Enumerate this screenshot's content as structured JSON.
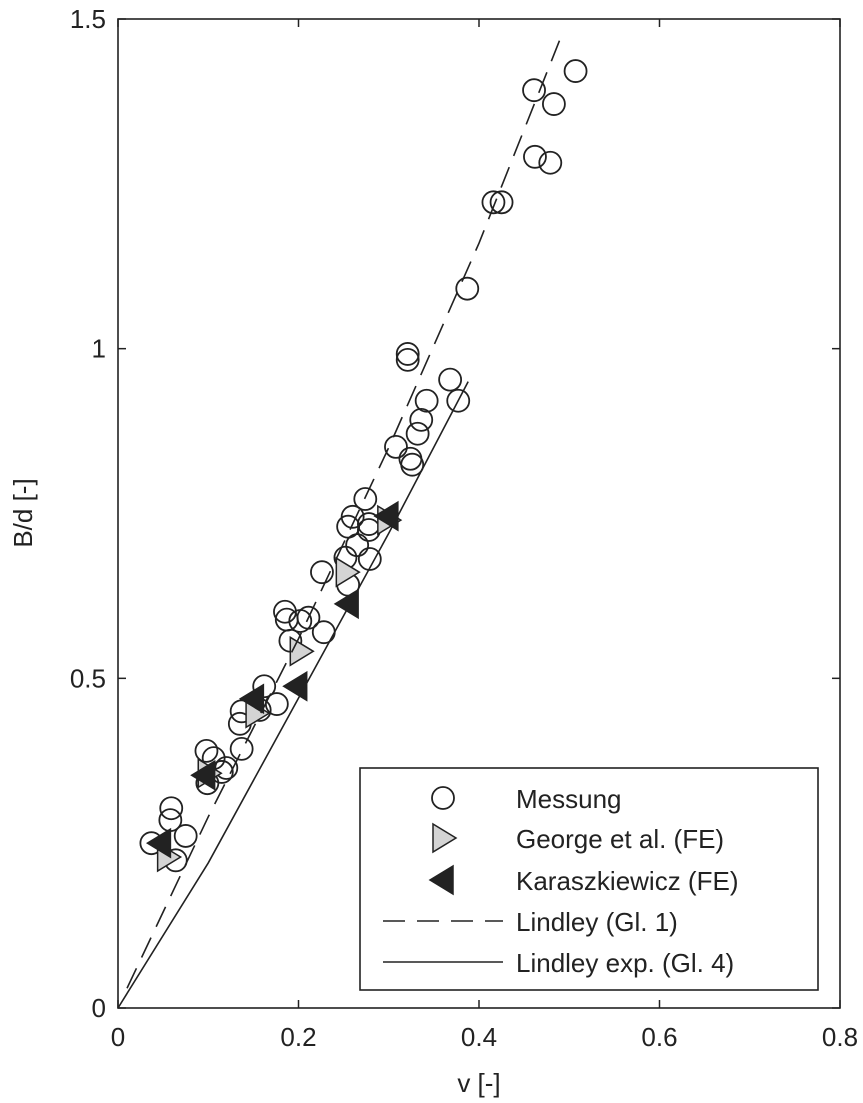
{
  "chart_data": {
    "type": "scatter",
    "title": "",
    "xlabel": "v [-]",
    "ylabel": "B/d [-]",
    "xlim": [
      0,
      0.8
    ],
    "ylim": [
      0,
      1.5
    ],
    "xticks": [
      0,
      0.2,
      0.4,
      0.6,
      0.8
    ],
    "xtick_labels": [
      "0",
      "0.2",
      "0.4",
      "0.6",
      "0.8"
    ],
    "yticks": [
      0,
      0.5,
      1,
      1.5
    ],
    "ytick_labels": [
      "0",
      "0.5",
      "1",
      "1.5"
    ],
    "grid": false,
    "legend_position": "bottom-right",
    "colors": {
      "axis": "#222222",
      "george_fill": "#d4d4d4",
      "karas_fill": "#222222"
    },
    "series": [
      {
        "name": "Messung",
        "kind": "markers",
        "marker": "circle",
        "points": [
          [
            0.461,
            1.392
          ],
          [
            0.507,
            1.421
          ],
          [
            0.483,
            1.371
          ],
          [
            0.462,
            1.291
          ],
          [
            0.479,
            1.282
          ],
          [
            0.416,
            1.222
          ],
          [
            0.425,
            1.222
          ],
          [
            0.387,
            1.091
          ],
          [
            0.321,
            0.992
          ],
          [
            0.321,
            0.983
          ],
          [
            0.368,
            0.953
          ],
          [
            0.377,
            0.921
          ],
          [
            0.342,
            0.921
          ],
          [
            0.336,
            0.892
          ],
          [
            0.332,
            0.871
          ],
          [
            0.308,
            0.851
          ],
          [
            0.324,
            0.833
          ],
          [
            0.326,
            0.824
          ],
          [
            0.274,
            0.772
          ],
          [
            0.26,
            0.745
          ],
          [
            0.278,
            0.734
          ],
          [
            0.278,
            0.725
          ],
          [
            0.255,
            0.73
          ],
          [
            0.265,
            0.702
          ],
          [
            0.279,
            0.681
          ],
          [
            0.252,
            0.683
          ],
          [
            0.255,
            0.642
          ],
          [
            0.226,
            0.661
          ],
          [
            0.185,
            0.601
          ],
          [
            0.187,
            0.589
          ],
          [
            0.211,
            0.592
          ],
          [
            0.202,
            0.587
          ],
          [
            0.228,
            0.57
          ],
          [
            0.191,
            0.557
          ],
          [
            0.162,
            0.488
          ],
          [
            0.176,
            0.461
          ],
          [
            0.157,
            0.452
          ],
          [
            0.137,
            0.45
          ],
          [
            0.135,
            0.431
          ],
          [
            0.137,
            0.393
          ],
          [
            0.098,
            0.39
          ],
          [
            0.106,
            0.379
          ],
          [
            0.115,
            0.358
          ],
          [
            0.12,
            0.364
          ],
          [
            0.099,
            0.341
          ],
          [
            0.059,
            0.303
          ],
          [
            0.058,
            0.285
          ],
          [
            0.075,
            0.261
          ],
          [
            0.037,
            0.25
          ],
          [
            0.064,
            0.224
          ]
        ]
      },
      {
        "name": "George et al. (FE)",
        "kind": "markers",
        "marker": "triangle-right",
        "points": [
          [
            0.055,
            0.229
          ],
          [
            0.1,
            0.356
          ],
          [
            0.153,
            0.447
          ],
          [
            0.202,
            0.541
          ],
          [
            0.253,
            0.661
          ],
          [
            0.299,
            0.74
          ]
        ]
      },
      {
        "name": "Karaszkiewicz (FE)",
        "kind": "markers",
        "marker": "triangle-left",
        "points": [
          [
            0.047,
            0.25
          ],
          [
            0.096,
            0.353
          ],
          [
            0.15,
            0.469
          ],
          [
            0.198,
            0.488
          ],
          [
            0.255,
            0.613
          ],
          [
            0.299,
            0.746
          ]
        ]
      },
      {
        "name": "Lindley (Gl. 1)",
        "kind": "line",
        "style": "dashed",
        "points": [
          [
            0.01,
            0.03
          ],
          [
            0.1,
            0.29
          ],
          [
            0.2,
            0.56
          ],
          [
            0.3,
            0.85
          ],
          [
            0.4,
            1.16
          ],
          [
            0.49,
            1.47
          ]
        ]
      },
      {
        "name": "Lindley exp. (Gl. 4)",
        "kind": "line",
        "style": "solid",
        "points": [
          [
            0,
            0
          ],
          [
            0.1,
            0.22
          ],
          [
            0.2,
            0.47
          ],
          [
            0.3,
            0.72
          ],
          [
            0.388,
            0.95
          ]
        ]
      }
    ]
  }
}
